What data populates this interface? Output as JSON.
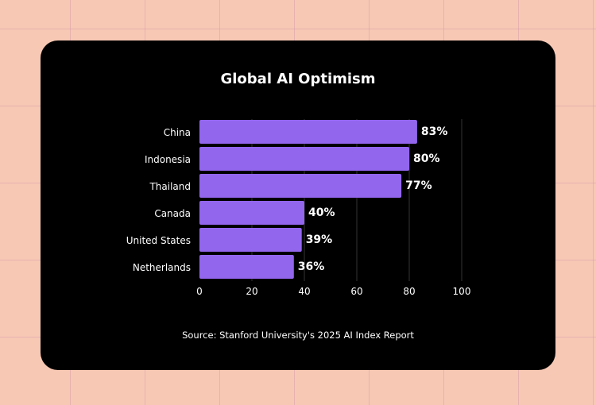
{
  "chart_data": {
    "type": "bar",
    "orientation": "horizontal",
    "title": "Global AI Optimism",
    "categories": [
      "China",
      "Indonesia",
      "Thailand",
      "Canada",
      "United States",
      "Netherlands"
    ],
    "values": [
      83,
      80,
      77,
      40,
      39,
      36
    ],
    "data_labels": [
      "83%",
      "80%",
      "77%",
      "40%",
      "39%",
      "36%"
    ],
    "xlim": [
      0,
      100
    ],
    "xticks": [
      0,
      20,
      40,
      60,
      80,
      100
    ],
    "grid": "vertical",
    "bar_color": "#9366ee",
    "source": "Source: Stanford University's 2025 AI Index Report"
  }
}
